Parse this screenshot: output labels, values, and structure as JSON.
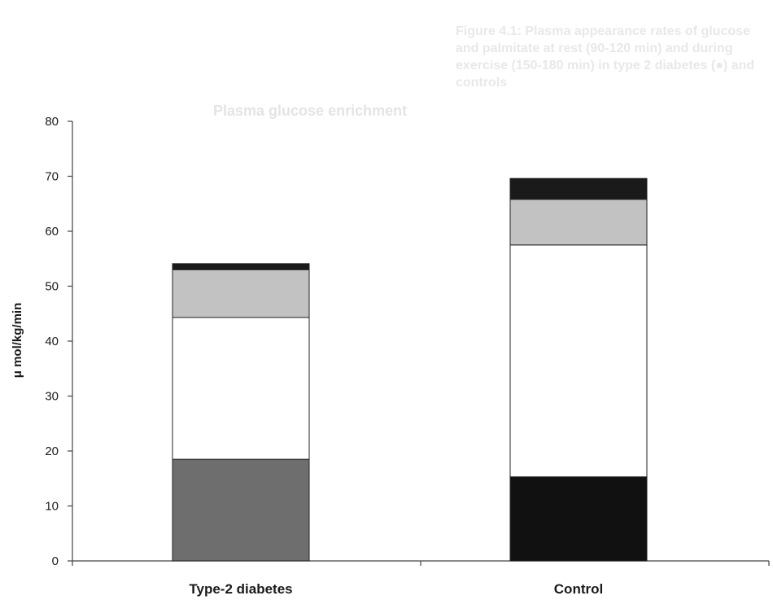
{
  "chart_data": {
    "type": "bar",
    "stacked": true,
    "categories": [
      "Type-2 diabetes",
      "Control"
    ],
    "series": [
      {
        "values": [
          18.5,
          15.3
        ],
        "colors": [
          "#6e6e6e",
          "#111111"
        ]
      },
      {
        "values": [
          25.8,
          42.2
        ],
        "colors": [
          "#ffffff",
          "#ffffff"
        ]
      },
      {
        "values": [
          8.7,
          8.3
        ],
        "colors": [
          "#c2c2c2",
          "#c2c2c2"
        ]
      },
      {
        "values": [
          1.1,
          3.8
        ],
        "colors": [
          "#1a1a1a",
          "#1a1a1a"
        ]
      }
    ],
    "xlabel": "",
    "ylabel": "μ mol/kg/min",
    "ylim": [
      0,
      80
    ],
    "yticks": [
      0,
      10,
      20,
      30,
      40,
      50,
      60,
      70,
      80
    ],
    "grid": false,
    "legend": "none"
  },
  "background_text": {
    "title": "Plasma glucose enrichment",
    "caption": "Figure 4.1: Plasma appearance rates of glucose and palmitate at rest (90-120 min) and during exercise (150-180 min) in type 2 diabetes (●) and controls"
  }
}
